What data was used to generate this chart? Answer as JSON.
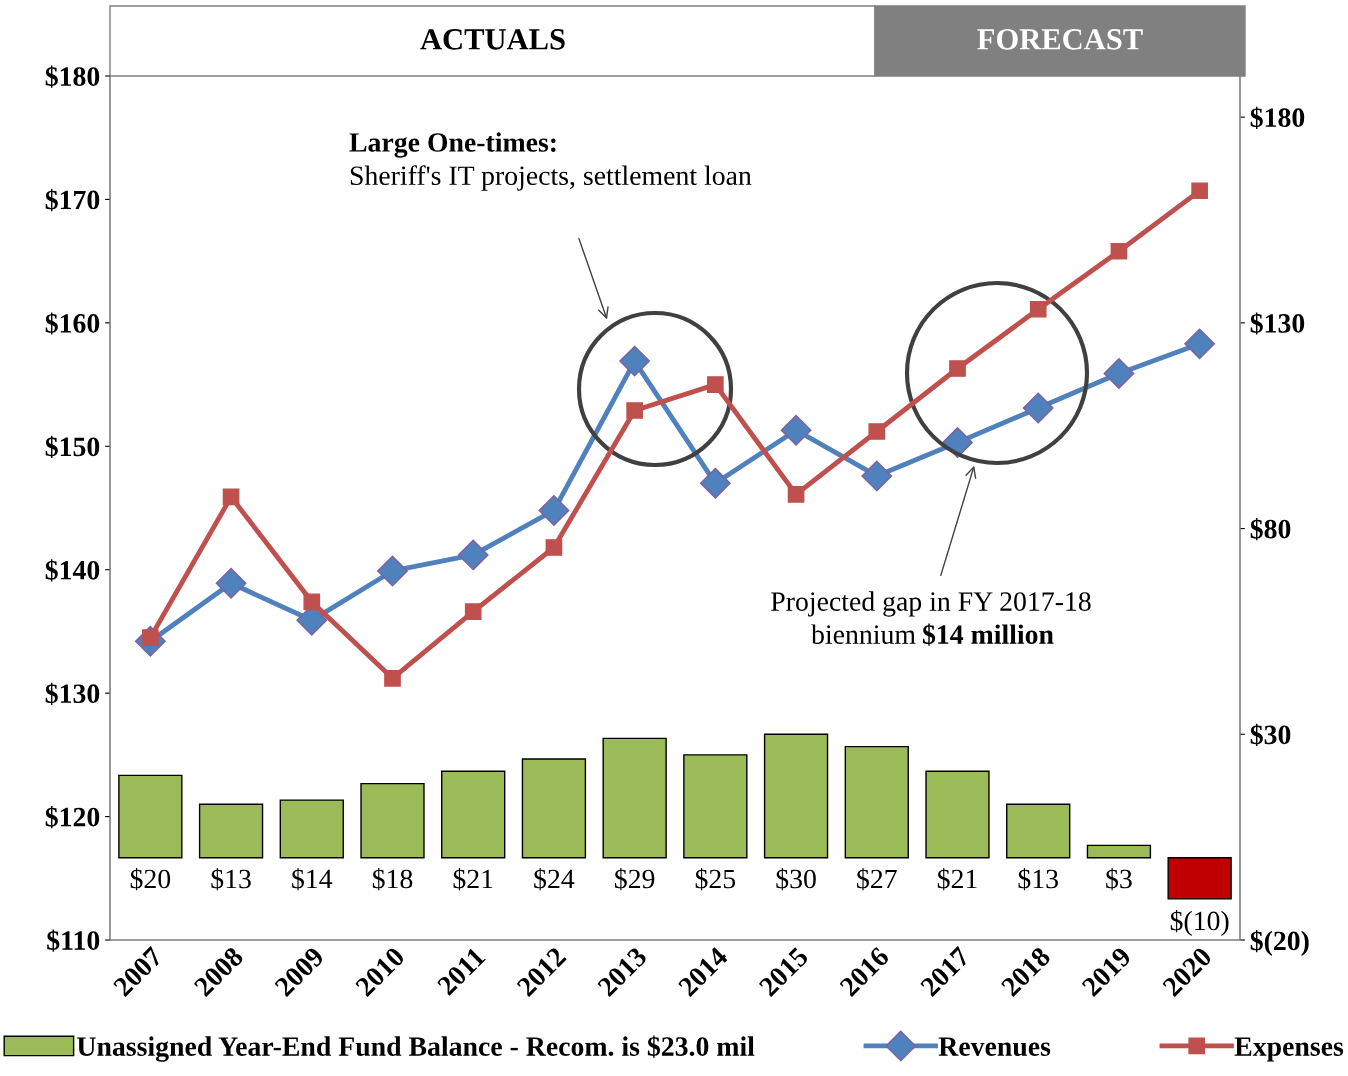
{
  "chart_data": {
    "type": "bar",
    "categories": [
      "2007",
      "2008",
      "2009",
      "2010",
      "2011",
      "2012",
      "2013",
      "2014",
      "2015",
      "2016",
      "2017",
      "2018",
      "2019",
      "2020"
    ],
    "series": [
      {
        "name": "Unassigned Year-End Fund Balance - Recom. is $23.0 mil",
        "axis": "y2",
        "colors": [
          "#9bbb59",
          "#9bbb59",
          "#9bbb59",
          "#9bbb59",
          "#9bbb59",
          "#9bbb59",
          "#9bbb59",
          "#9bbb59",
          "#9bbb59",
          "#9bbb59",
          "#9bbb59",
          "#9bbb59",
          "#9bbb59",
          "#c00000"
        ],
        "values": [
          20,
          13,
          14,
          18,
          21,
          24,
          29,
          25,
          30,
          27,
          21,
          13,
          3,
          -10
        ],
        "value_labels": [
          "$20",
          "$13",
          "$14",
          "$18",
          "$21",
          "$24",
          "$29",
          "$25",
          "$30",
          "$27",
          "$21",
          "$13",
          "$3",
          "$(10)"
        ]
      },
      {
        "name": "Revenues",
        "type": "line",
        "color": "#4f81bd",
        "marker": "diamond",
        "values": [
          134.2,
          138.9,
          135.9,
          139.9,
          141.2,
          144.8,
          156.9,
          147.0,
          151.3,
          147.6,
          150.3,
          153.1,
          155.9,
          158.3
        ]
      },
      {
        "name": "Expenses",
        "type": "line",
        "color": "#c0504d",
        "marker": "square",
        "values": [
          134.5,
          145.9,
          137.4,
          131.2,
          136.6,
          141.8,
          152.9,
          155.0,
          146.1,
          151.2,
          156.3,
          161.1,
          165.8,
          170.7
        ]
      }
    ],
    "ylim": [
      110,
      180
    ],
    "yticks": [
      {
        "value": 110,
        "label": "$110"
      },
      {
        "value": 120,
        "label": "$120"
      },
      {
        "value": 130,
        "label": "$130"
      },
      {
        "value": 140,
        "label": "$140"
      },
      {
        "value": 150,
        "label": "$150"
      },
      {
        "value": 160,
        "label": "$160"
      },
      {
        "value": 170,
        "label": "$170"
      },
      {
        "value": 180,
        "label": "$180"
      }
    ],
    "y2lim": [
      -20,
      190
    ],
    "y2ticks": [
      {
        "value": -20,
        "label": "$(20)"
      },
      {
        "value": 30,
        "label": "$30"
      },
      {
        "value": 80,
        "label": "$80"
      },
      {
        "value": 130,
        "label": "$130"
      },
      {
        "value": 180,
        "label": "$180"
      }
    ],
    "annotations": [
      "ACTUALS",
      "FORECAST",
      "Large One-times:",
      "Sheriff's IT projects, settlement loan",
      "Projected gap in FY 2017-18",
      "biennium",
      "$14 million"
    ],
    "legend": "bottom",
    "grid": false
  }
}
